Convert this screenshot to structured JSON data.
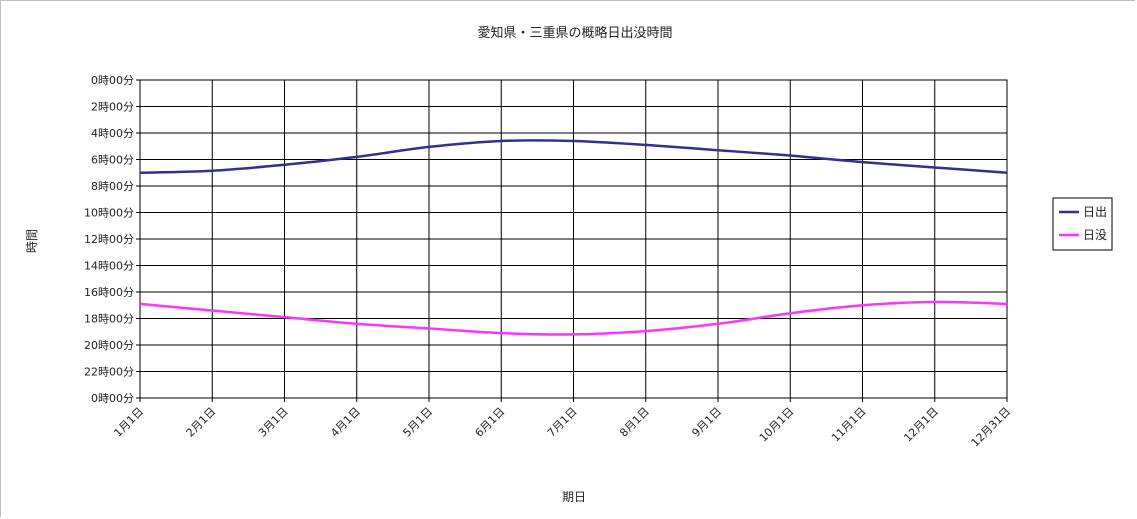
{
  "chart_data": {
    "type": "line",
    "title": "愛知県・三重県の概略日出没時間",
    "xlabel": "期日",
    "ylabel": "時間",
    "categories": [
      "1月1日",
      "2月1日",
      "3月1日",
      "4月1日",
      "5月1日",
      "6月1日",
      "7月1日",
      "8月1日",
      "9月1日",
      "10月1日",
      "11月1日",
      "12月1日",
      "12月31日"
    ],
    "y_ticks": [
      "0時00分",
      "2時00分",
      "4時00分",
      "6時00分",
      "8時00分",
      "10時00分",
      "12時00分",
      "14時00分",
      "16時00分",
      "18時00分",
      "20時00分",
      "22時00分",
      "0時00分"
    ],
    "ylim": [
      0,
      24
    ],
    "y_inverted": true,
    "grid": true,
    "legend_position": "right",
    "series": [
      {
        "name": "日出",
        "color": "#2e3192",
        "values": [
          7.0,
          6.85,
          6.4,
          5.8,
          5.05,
          4.6,
          4.6,
          4.9,
          5.3,
          5.7,
          6.2,
          6.6,
          7.0
        ]
      },
      {
        "name": "日没",
        "color": "#ff33ff",
        "values": [
          16.9,
          17.4,
          17.9,
          18.4,
          18.75,
          19.1,
          19.2,
          18.95,
          18.4,
          17.6,
          17.0,
          16.75,
          16.9
        ]
      }
    ]
  }
}
